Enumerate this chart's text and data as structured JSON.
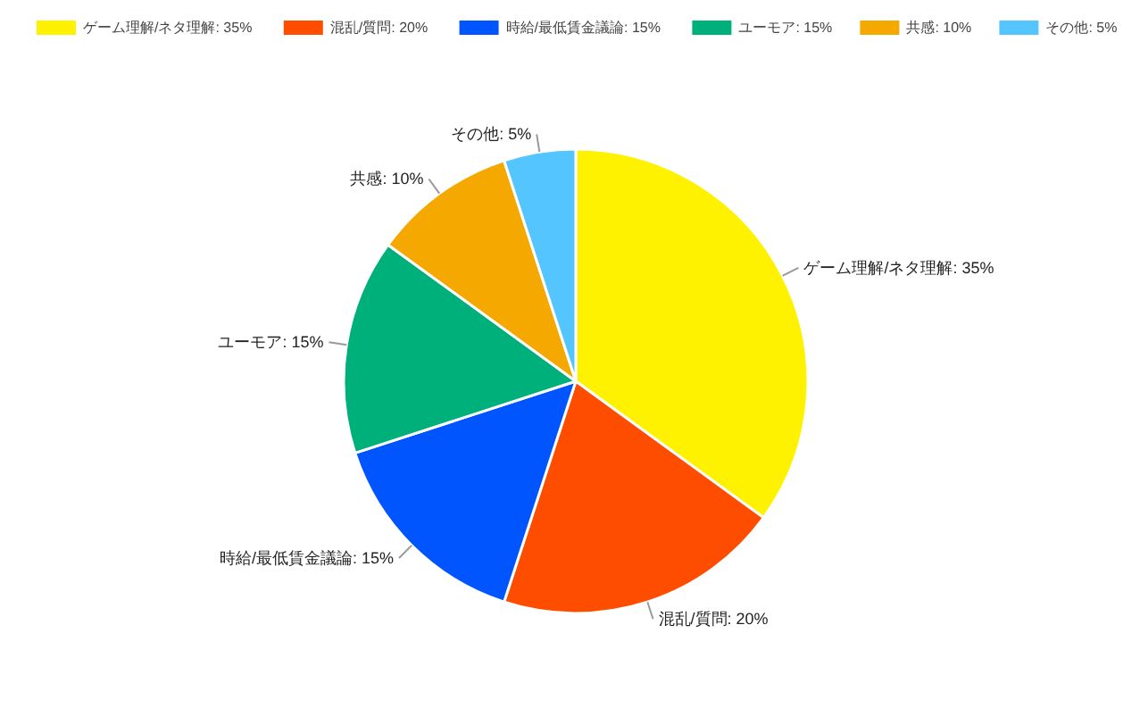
{
  "chart_data": {
    "type": "pie",
    "categories": [
      "ゲーム理解/ネタ理解: 35%",
      "混乱/質問: 20%",
      "時給/最低賃金議論: 15%",
      "ユーモア: 15%",
      "共感: 10%",
      "その他: 5%"
    ],
    "values": [
      35,
      20,
      15,
      15,
      10,
      5
    ],
    "colors": [
      "#fff200",
      "#ff4d00",
      "#0055ff",
      "#00b07a",
      "#f5a800",
      "#55c5ff"
    ],
    "legend": "top"
  }
}
